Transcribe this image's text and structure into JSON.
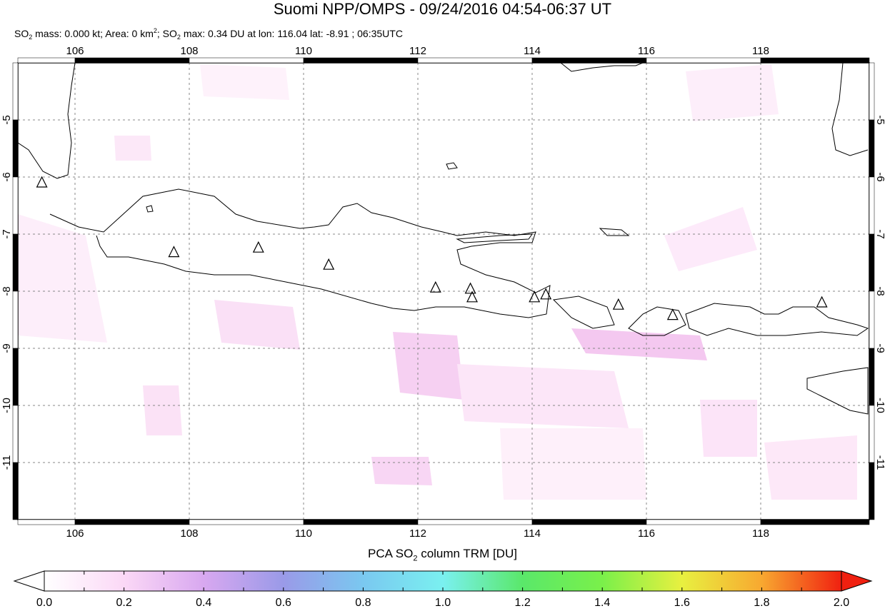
{
  "title": "Suomi NPP/OMPS - 09/24/2016 04:54-06:37 UT",
  "stats": {
    "so2_mass_label": "SO",
    "mass_text": " mass: 0.000 kt; Area: 0 km",
    "area_text": "; SO",
    "max_text": " max: 0.34 DU at lon: 116.04 lat: -8.91 ; 06:35UTC",
    "sub2": "2",
    "sup2": "2"
  },
  "map": {
    "lon_range": [
      105.0,
      119.9
    ],
    "lat_range": [
      -12.0,
      -4.0
    ],
    "lon_ticks": [
      106,
      108,
      110,
      112,
      114,
      116,
      118
    ],
    "lat_ticks": [
      -5,
      -6,
      -7,
      -8,
      -9,
      -10,
      -11
    ],
    "lon_tick_labels": [
      "106",
      "108",
      "110",
      "112",
      "114",
      "116",
      "118"
    ],
    "lat_tick_labels": [
      "-5",
      "-6",
      "-7",
      "-8",
      "-9",
      "-10",
      "-11"
    ],
    "volcanoes": [
      {
        "lon": 105.42,
        "lat": -6.1
      },
      {
        "lon": 107.73,
        "lat": -7.32
      },
      {
        "lon": 109.21,
        "lat": -7.24
      },
      {
        "lon": 110.44,
        "lat": -7.54
      },
      {
        "lon": 112.31,
        "lat": -7.94
      },
      {
        "lon": 112.92,
        "lat": -7.96
      },
      {
        "lon": 112.95,
        "lat": -8.11
      },
      {
        "lon": 114.04,
        "lat": -8.11
      },
      {
        "lon": 114.24,
        "lat": -8.06
      },
      {
        "lon": 115.51,
        "lat": -8.24
      },
      {
        "lon": 116.46,
        "lat": -8.42
      },
      {
        "lon": 119.07,
        "lat": -8.2
      }
    ],
    "colors": {
      "coast": "#000000",
      "grid": "#888888",
      "elevated_so2": "#f6c8f0",
      "light_so2": "#fce8f8"
    }
  },
  "colorbar": {
    "label_prefix": "PCA SO",
    "label_sub": "2",
    "label_suffix": " column TRM [DU]",
    "range": [
      0.0,
      2.0
    ],
    "tick_labels": [
      "0.0",
      "0.2",
      "0.4",
      "0.6",
      "0.8",
      "1.0",
      "1.2",
      "1.4",
      "1.6",
      "1.8",
      "2.0"
    ],
    "stops": [
      "#ffffff",
      "#fbd8f6",
      "#d8a8f0",
      "#9a9ae8",
      "#7ac8f0",
      "#7af0f0",
      "#5ae86a",
      "#7af04a",
      "#e8f040",
      "#f8a830",
      "#f02010"
    ]
  }
}
